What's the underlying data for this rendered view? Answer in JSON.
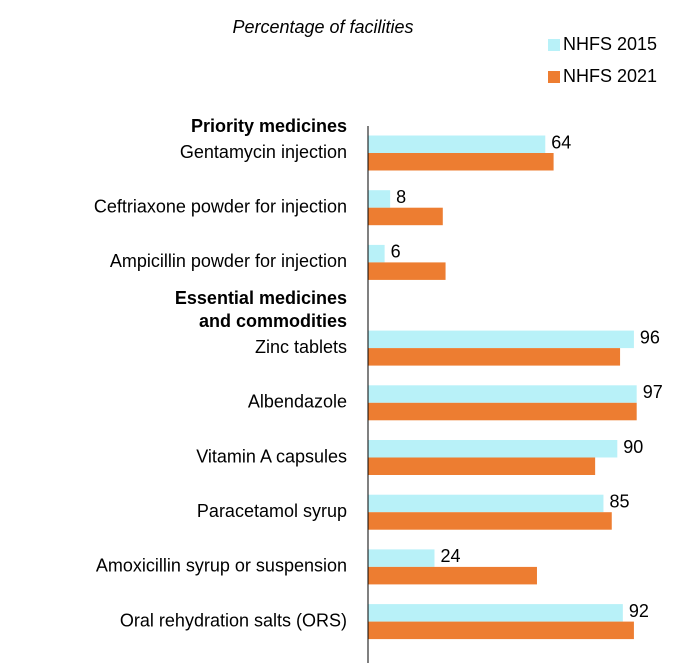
{
  "chart_data": {
    "type": "bar",
    "orientation": "horizontal",
    "axis_title": "Percentage of facilities",
    "groups": [
      {
        "label": [
          "Priority medicines"
        ],
        "categories": [
          "Gentamycin injection",
          "Ceftriaxone powder for injection",
          "Ampicillin powder for injection"
        ]
      },
      {
        "label": [
          "Essential medicines",
          "and commodities"
        ],
        "categories": [
          "Zinc tablets",
          "Albendazole",
          "Vitamin A capsules",
          "Paracetamol syrup",
          "Amoxicillin syrup or suspension",
          "Oral rehydration salts (ORS)"
        ]
      }
    ],
    "series": [
      {
        "name": "NHFS 2015",
        "color": "#b8f1f8",
        "show_labels": true,
        "values": [
          64,
          8,
          6,
          96,
          97,
          90,
          85,
          24,
          92
        ]
      },
      {
        "name": "NHFS 2021",
        "color": "#ed7d31",
        "show_labels": false,
        "values": [
          67,
          27,
          28,
          91,
          97,
          82,
          88,
          61,
          96
        ]
      }
    ],
    "xlim": [
      0,
      100
    ],
    "grid": false,
    "legend": "top-right"
  }
}
